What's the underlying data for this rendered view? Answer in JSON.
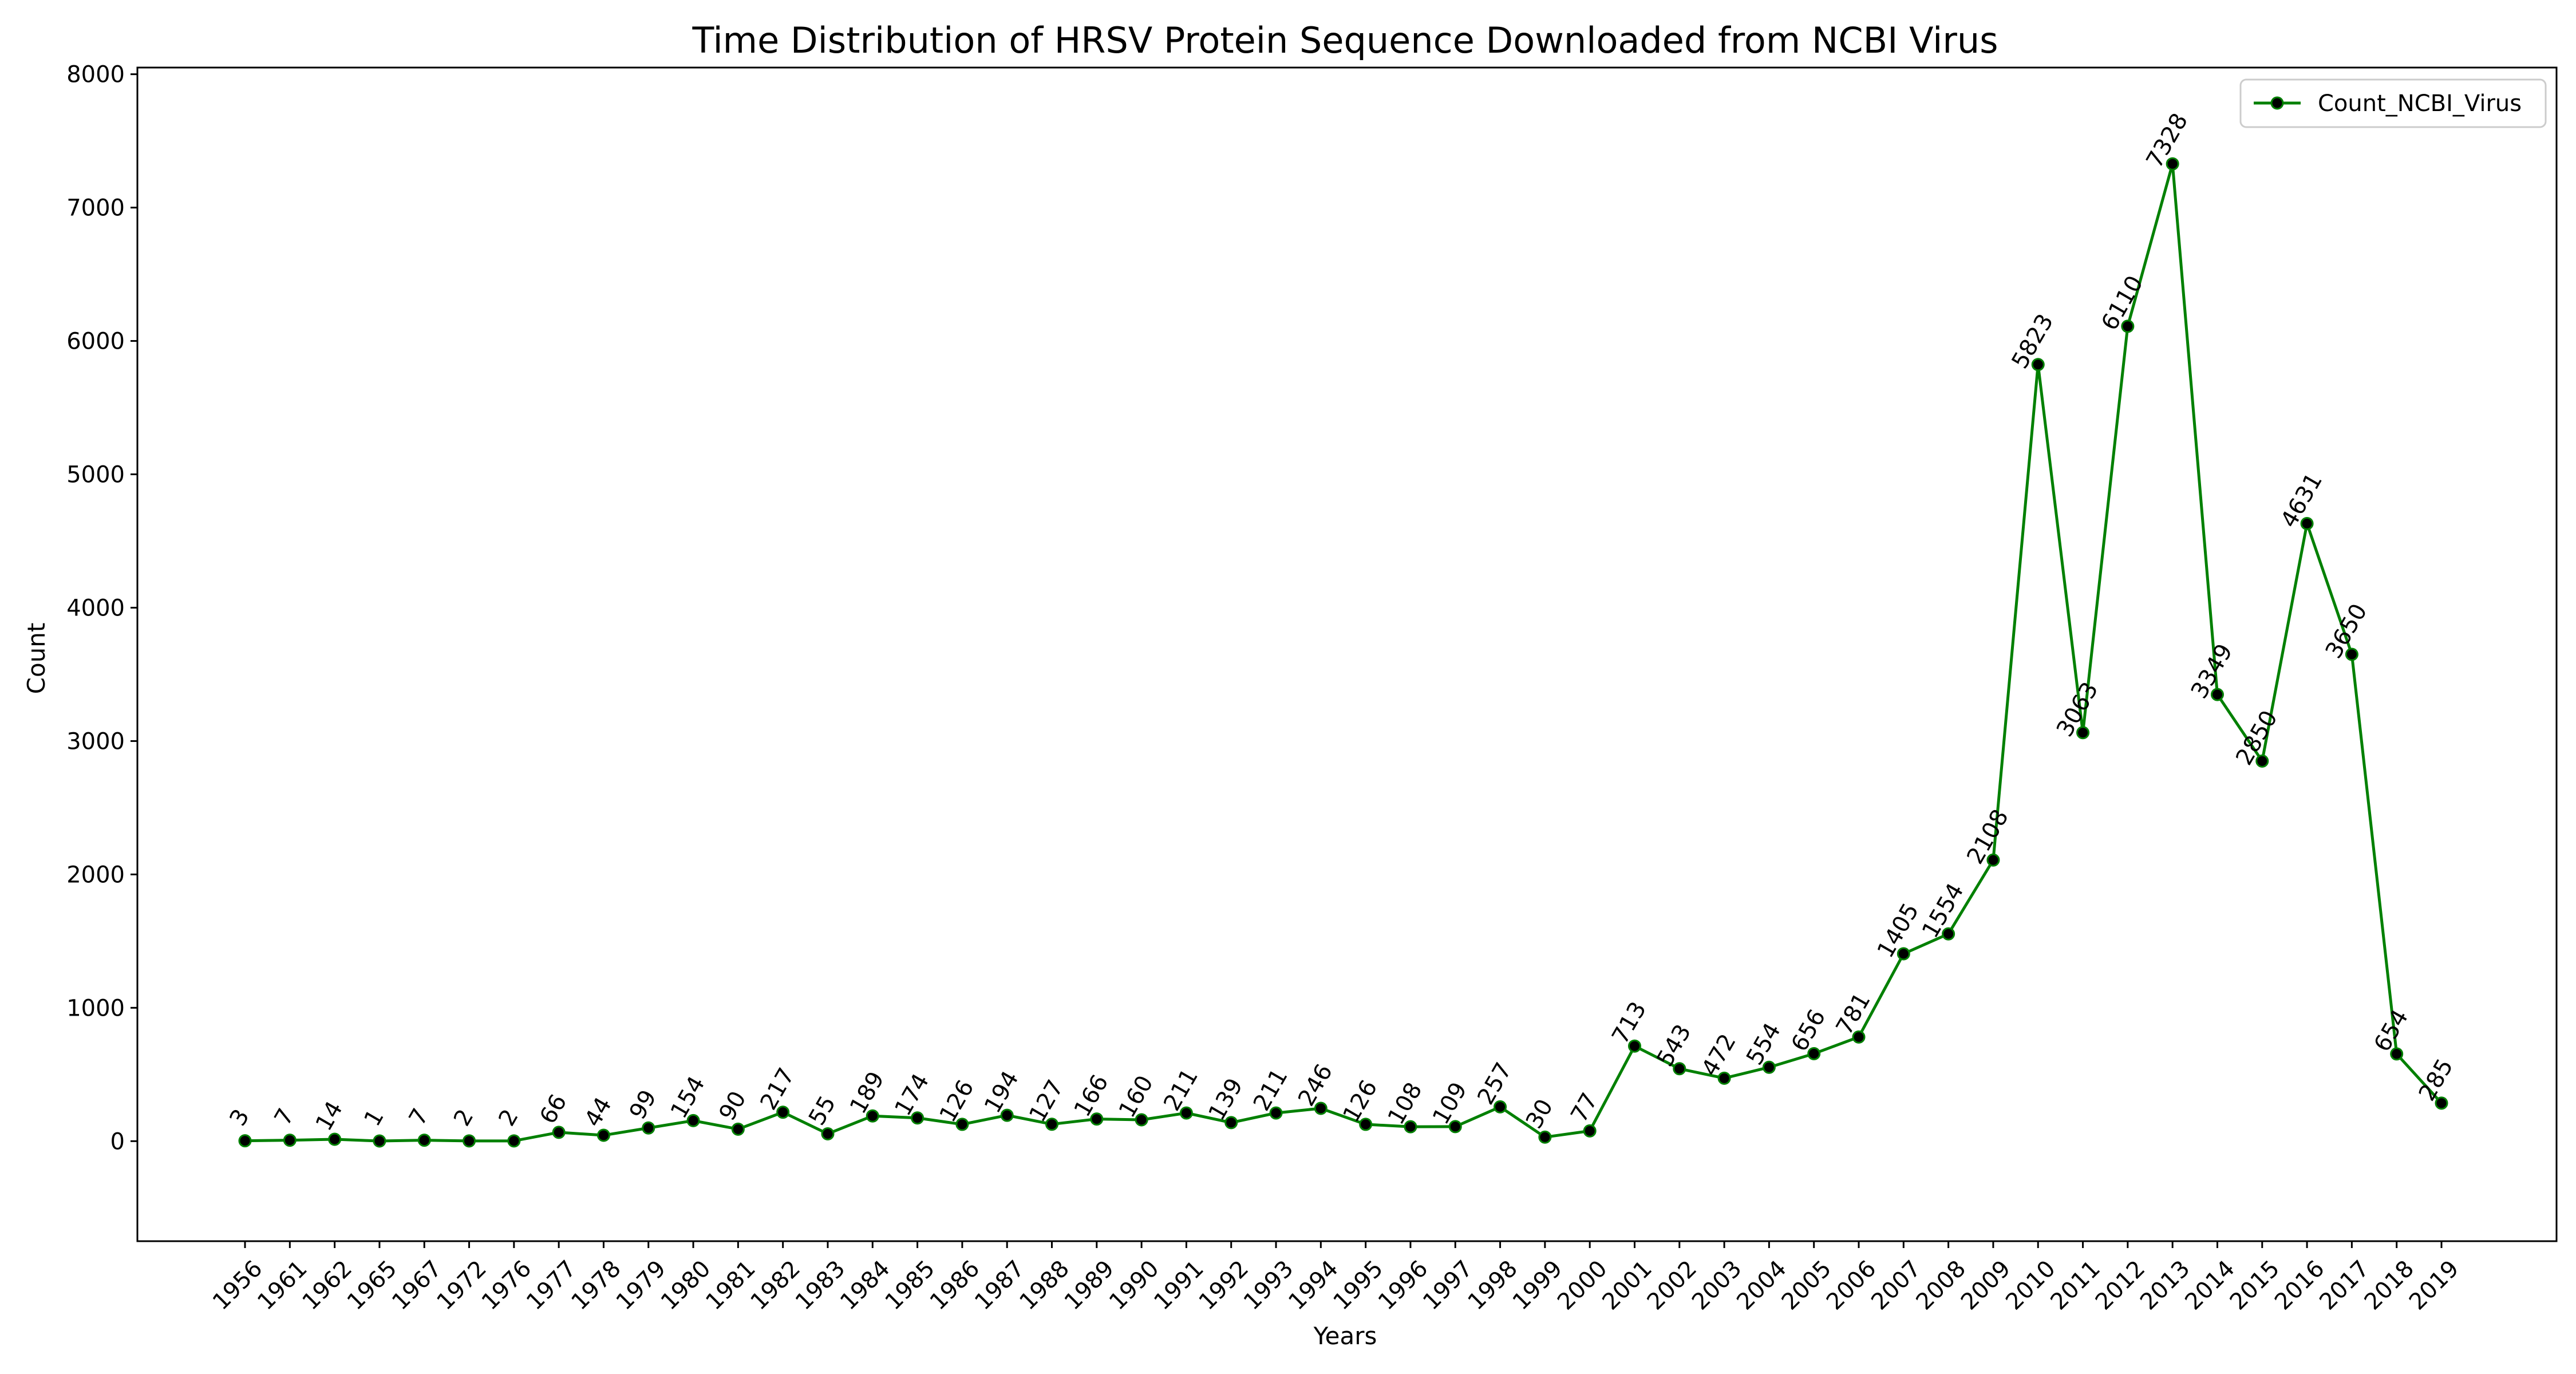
{
  "chart_data": {
    "type": "line",
    "title": "Time Distribution of HRSV Protein Sequence Downloaded from NCBI Virus",
    "xlabel": "Years",
    "ylabel": "Count",
    "ylim": [
      -750,
      8050
    ],
    "yticks": [
      0,
      1000,
      2000,
      3000,
      4000,
      5000,
      6000,
      7000,
      8000
    ],
    "grid": false,
    "legend_position": "top-right",
    "categories": [
      "1956",
      "1961",
      "1962",
      "1965",
      "1967",
      "1972",
      "1976",
      "1977",
      "1978",
      "1979",
      "1980",
      "1981",
      "1982",
      "1983",
      "1984",
      "1985",
      "1986",
      "1987",
      "1988",
      "1989",
      "1990",
      "1991",
      "1992",
      "1993",
      "1994",
      "1995",
      "1996",
      "1997",
      "1998",
      "1999",
      "2000",
      "2001",
      "2002",
      "2003",
      "2004",
      "2005",
      "2006",
      "2007",
      "2008",
      "2009",
      "2010",
      "2011",
      "2012",
      "2013",
      "2014",
      "2015",
      "2016",
      "2017",
      "2018",
      "2019"
    ],
    "series": [
      {
        "name": "Count_NCBI_Virus",
        "color": "#008000",
        "marker_color": "#000000",
        "values": [
          3,
          7,
          14,
          1,
          7,
          2,
          2,
          66,
          44,
          99,
          154,
          90,
          217,
          55,
          189,
          174,
          126,
          194,
          127,
          166,
          160,
          211,
          139,
          211,
          246,
          126,
          108,
          109,
          257,
          30,
          77,
          713,
          543,
          472,
          554,
          656,
          781,
          1405,
          1554,
          2108,
          5823,
          3063,
          6110,
          7328,
          3349,
          2850,
          4631,
          3650,
          654,
          285
        ]
      }
    ]
  }
}
